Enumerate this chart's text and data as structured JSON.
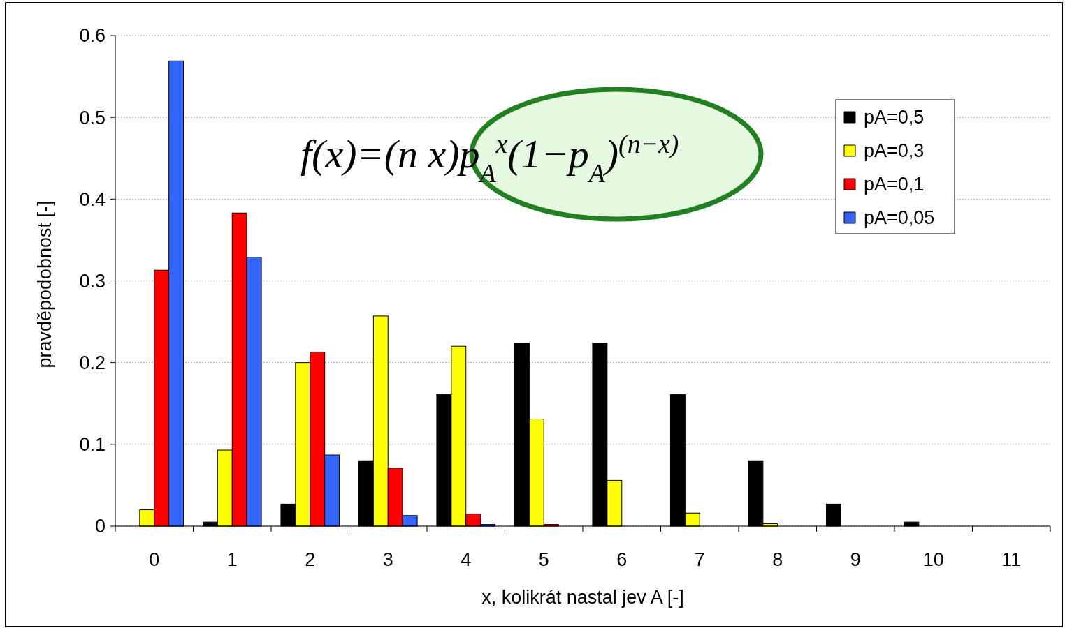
{
  "chart_data": {
    "type": "bar",
    "xlabel": "x, kolikrát nastal jev A [-]",
    "ylabel": "pravděpodobnost [-]",
    "categories": [
      "0",
      "1",
      "2",
      "3",
      "4",
      "5",
      "6",
      "7",
      "8",
      "9",
      "10",
      "11"
    ],
    "series": [
      {
        "name": "pA=0,5",
        "color": "#000000",
        "values": [
          0,
          0.005,
          0.027,
          0.08,
          0.161,
          0.224,
          0.224,
          0.161,
          0.08,
          0.027,
          0.005,
          0
        ]
      },
      {
        "name": "pA=0,3",
        "color": "#ffff00",
        "values": [
          0.02,
          0.093,
          0.2,
          0.257,
          0.22,
          0.131,
          0.056,
          0.016,
          0.003,
          0,
          0,
          0
        ]
      },
      {
        "name": "pA=0,1",
        "color": "#ff0000",
        "values": [
          0.313,
          0.383,
          0.213,
          0.071,
          0.015,
          0.002,
          0,
          0,
          0,
          0,
          0,
          0
        ]
      },
      {
        "name": "pA=0,05",
        "color": "#3366ff",
        "values": [
          0.569,
          0.329,
          0.087,
          0.013,
          0.002,
          0,
          0,
          0,
          0,
          0,
          0,
          0
        ]
      }
    ],
    "ylim": [
      0,
      0.6
    ],
    "yticks": [
      0,
      0.1,
      0.2,
      0.3,
      0.4,
      0.5,
      0.6
    ],
    "grid": "y",
    "legend": "top right",
    "annotations": [
      "f(x)=(n x)p$_{A}$$^{x}$(1−p$_{A}$)$^{(n−x)}$"
    ]
  }
}
